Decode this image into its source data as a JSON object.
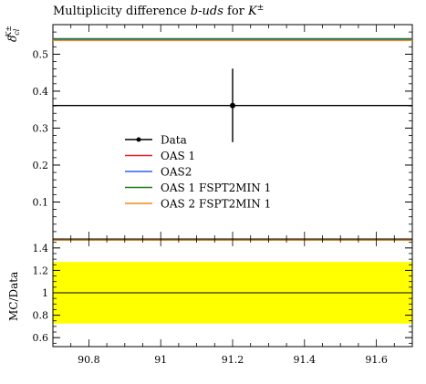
{
  "title": "Multiplicity difference b-uds for K±",
  "title_parts": {
    "lead": "Multiplicity difference ",
    "italic": "b-uds",
    "mid": " for ",
    "tail": "K",
    "sup": "±"
  },
  "top_ylabel": {
    "main": "δ",
    "sub": "cl",
    "sup": "K±"
  },
  "bottom_ylabel": "MC/Data",
  "legend": {
    "data": "Data",
    "oas1": "OAS 1",
    "oas2": "OAS2",
    "oas1_fspt": "OAS 1 FSPT2MIN 1",
    "oas2_fspt": "OAS 2 FSPT2MIN 1"
  },
  "colors": {
    "data": "#000000",
    "oas1": "#e8202a",
    "oas2": "#2b62ef",
    "oas1_fspt": "#1d7a1d",
    "oas2_fspt": "#f28c1a",
    "band": "#ffff00"
  },
  "chart_data": [
    {
      "type": "line",
      "panel": "main",
      "title": "Multiplicity difference b-uds for K±",
      "ylabel": "δ_cl^{K±}",
      "xlim": [
        90.7,
        91.7
      ],
      "ylim": [
        0.0,
        0.58
      ],
      "yticks": [
        0.1,
        0.2,
        0.3,
        0.4,
        0.5
      ],
      "xticks": [
        90.8,
        91.0,
        91.2,
        91.4,
        91.6
      ],
      "series": [
        {
          "name": "Data",
          "key": "data",
          "x": 91.2,
          "y": 0.361,
          "xerr": [
            90.7,
            91.7
          ],
          "yerr": [
            0.262,
            0.461
          ]
        },
        {
          "name": "OAS 1",
          "key": "oas1",
          "x": [
            90.7,
            91.7
          ],
          "y": [
            0.54,
            0.54
          ]
        },
        {
          "name": "OAS2",
          "key": "oas2",
          "x": [
            90.7,
            91.7
          ],
          "y": [
            0.54,
            0.54
          ]
        },
        {
          "name": "OAS 1 FSPT2MIN 1",
          "key": "oas1_fspt",
          "x": [
            90.7,
            91.7
          ],
          "y": [
            0.542,
            0.542
          ]
        },
        {
          "name": "OAS 2 FSPT2MIN 1",
          "key": "oas2_fspt",
          "x": [
            90.7,
            91.7
          ],
          "y": [
            0.537,
            0.537
          ]
        }
      ]
    },
    {
      "type": "line",
      "panel": "ratio",
      "ylabel": "MC/Data",
      "xlim": [
        90.7,
        91.7
      ],
      "ylim": [
        0.52,
        1.48
      ],
      "yticks": [
        0.6,
        0.8,
        1.0,
        1.2,
        1.4
      ],
      "yticklabels": [
        "0.6",
        "0.8",
        "1",
        "1.2",
        "1.4"
      ],
      "xticks": [
        90.8,
        91.0,
        91.2,
        91.4,
        91.6
      ],
      "xticklabels": [
        "90.8",
        "91",
        "91.2",
        "91.4",
        "91.6"
      ],
      "band": {
        "low": 0.725,
        "high": 1.275
      },
      "series": [
        {
          "name": "Data",
          "key": "data",
          "y": 1.0
        },
        {
          "name": "OAS 1",
          "key": "oas1",
          "y": 1.496
        },
        {
          "name": "OAS2",
          "key": "oas2",
          "y": 1.496
        },
        {
          "name": "OAS 1 FSPT2MIN 1",
          "key": "oas1_fspt",
          "y": 1.5
        },
        {
          "name": "OAS 2 FSPT2MIN 1",
          "key": "oas2_fspt",
          "y": 1.49
        }
      ]
    }
  ]
}
